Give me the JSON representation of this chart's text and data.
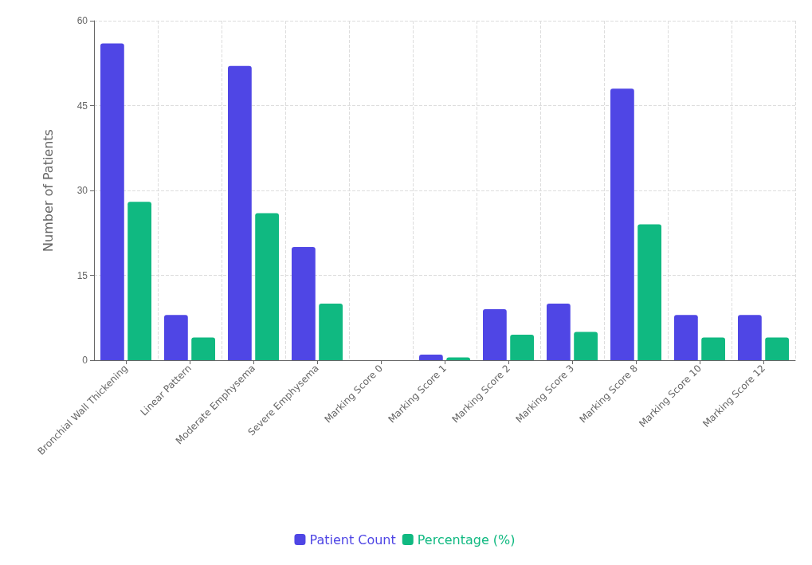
{
  "chart_data": {
    "type": "bar",
    "ylabel": "Number of Patients",
    "categories": [
      "Bronchial Wall Thickening",
      "Linear Pattern",
      "Moderate Emphysema",
      "Severe Emphysema",
      "Marking Score 0",
      "Marking Score 1",
      "Marking Score 2",
      "Marking Score 3",
      "Marking Score 8",
      "Marking Score 10",
      "Marking Score 12"
    ],
    "series": [
      {
        "name": "Patient Count",
        "color": "#4f46e5",
        "values": [
          56,
          8,
          52,
          20,
          0,
          1,
          9,
          10,
          48,
          8,
          8
        ]
      },
      {
        "name": "Percentage (%)",
        "color": "#10b981",
        "values": [
          28,
          4,
          26,
          10,
          0,
          0.5,
          4.5,
          5,
          24,
          4,
          4
        ]
      }
    ],
    "ylim": [
      0,
      60
    ],
    "yticks": [
      0,
      15,
      30,
      45,
      60
    ],
    "grid": true,
    "legend": "bottom"
  }
}
